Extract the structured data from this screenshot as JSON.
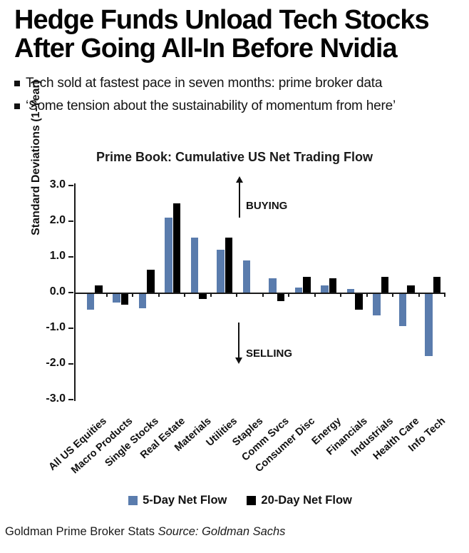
{
  "header": {
    "title_line1": "Hedge Funds Unload Tech Stocks",
    "title_line2": "After Going All-In Before Nvidia",
    "bullets": [
      "Tech sold at fastest pace in seven months: prime broker data",
      "‘Some tension about the sustainability of momentum from here’"
    ]
  },
  "chart_data": {
    "type": "bar",
    "title": "Prime Book: Cumulative US Net Trading Flow",
    "xlabel": "",
    "ylabel": "Standard Deviations (1-Year)",
    "ylim": [
      -3.0,
      3.0
    ],
    "ytick_labels": [
      "3.0",
      "2.0",
      "1.0",
      "0.0",
      "-1.0",
      "-2.0",
      "-3.0"
    ],
    "grid": false,
    "legend_position": "bottom",
    "categories": [
      "All US Equities",
      "Macro Products",
      "Single Stocks",
      "Real Estate",
      "Materials",
      "Utilities",
      "Staples",
      "Comm Svcs",
      "Consumer Disc",
      "Energy",
      "Financials",
      "Industrials",
      "Health Care",
      "Info Tech"
    ],
    "series": [
      {
        "name": "5-Day Net Flow",
        "color": "#5a7cad",
        "values": [
          -0.45,
          -0.25,
          -0.4,
          2.1,
          1.55,
          1.2,
          0.9,
          0.4,
          0.15,
          0.2,
          0.1,
          -0.6,
          -0.9,
          -1.75
        ]
      },
      {
        "name": "20-Day Net Flow",
        "color": "#000000",
        "values": [
          0.2,
          -0.3,
          0.65,
          2.5,
          -0.15,
          1.55,
          0.0,
          -0.2,
          0.45,
          0.4,
          -0.45,
          0.45,
          0.2,
          0.45
        ]
      }
    ],
    "annotations": [
      {
        "text": "BUYING",
        "direction": "up"
      },
      {
        "text": "SELLING",
        "direction": "down"
      }
    ]
  },
  "footer": {
    "text": "Goldman Prime Broker Stats",
    "source": "Source: Goldman Sachs"
  },
  "colors": {
    "series_blue": "#5a7cad",
    "series_black": "#000000",
    "axis": "#1a1a1a"
  }
}
